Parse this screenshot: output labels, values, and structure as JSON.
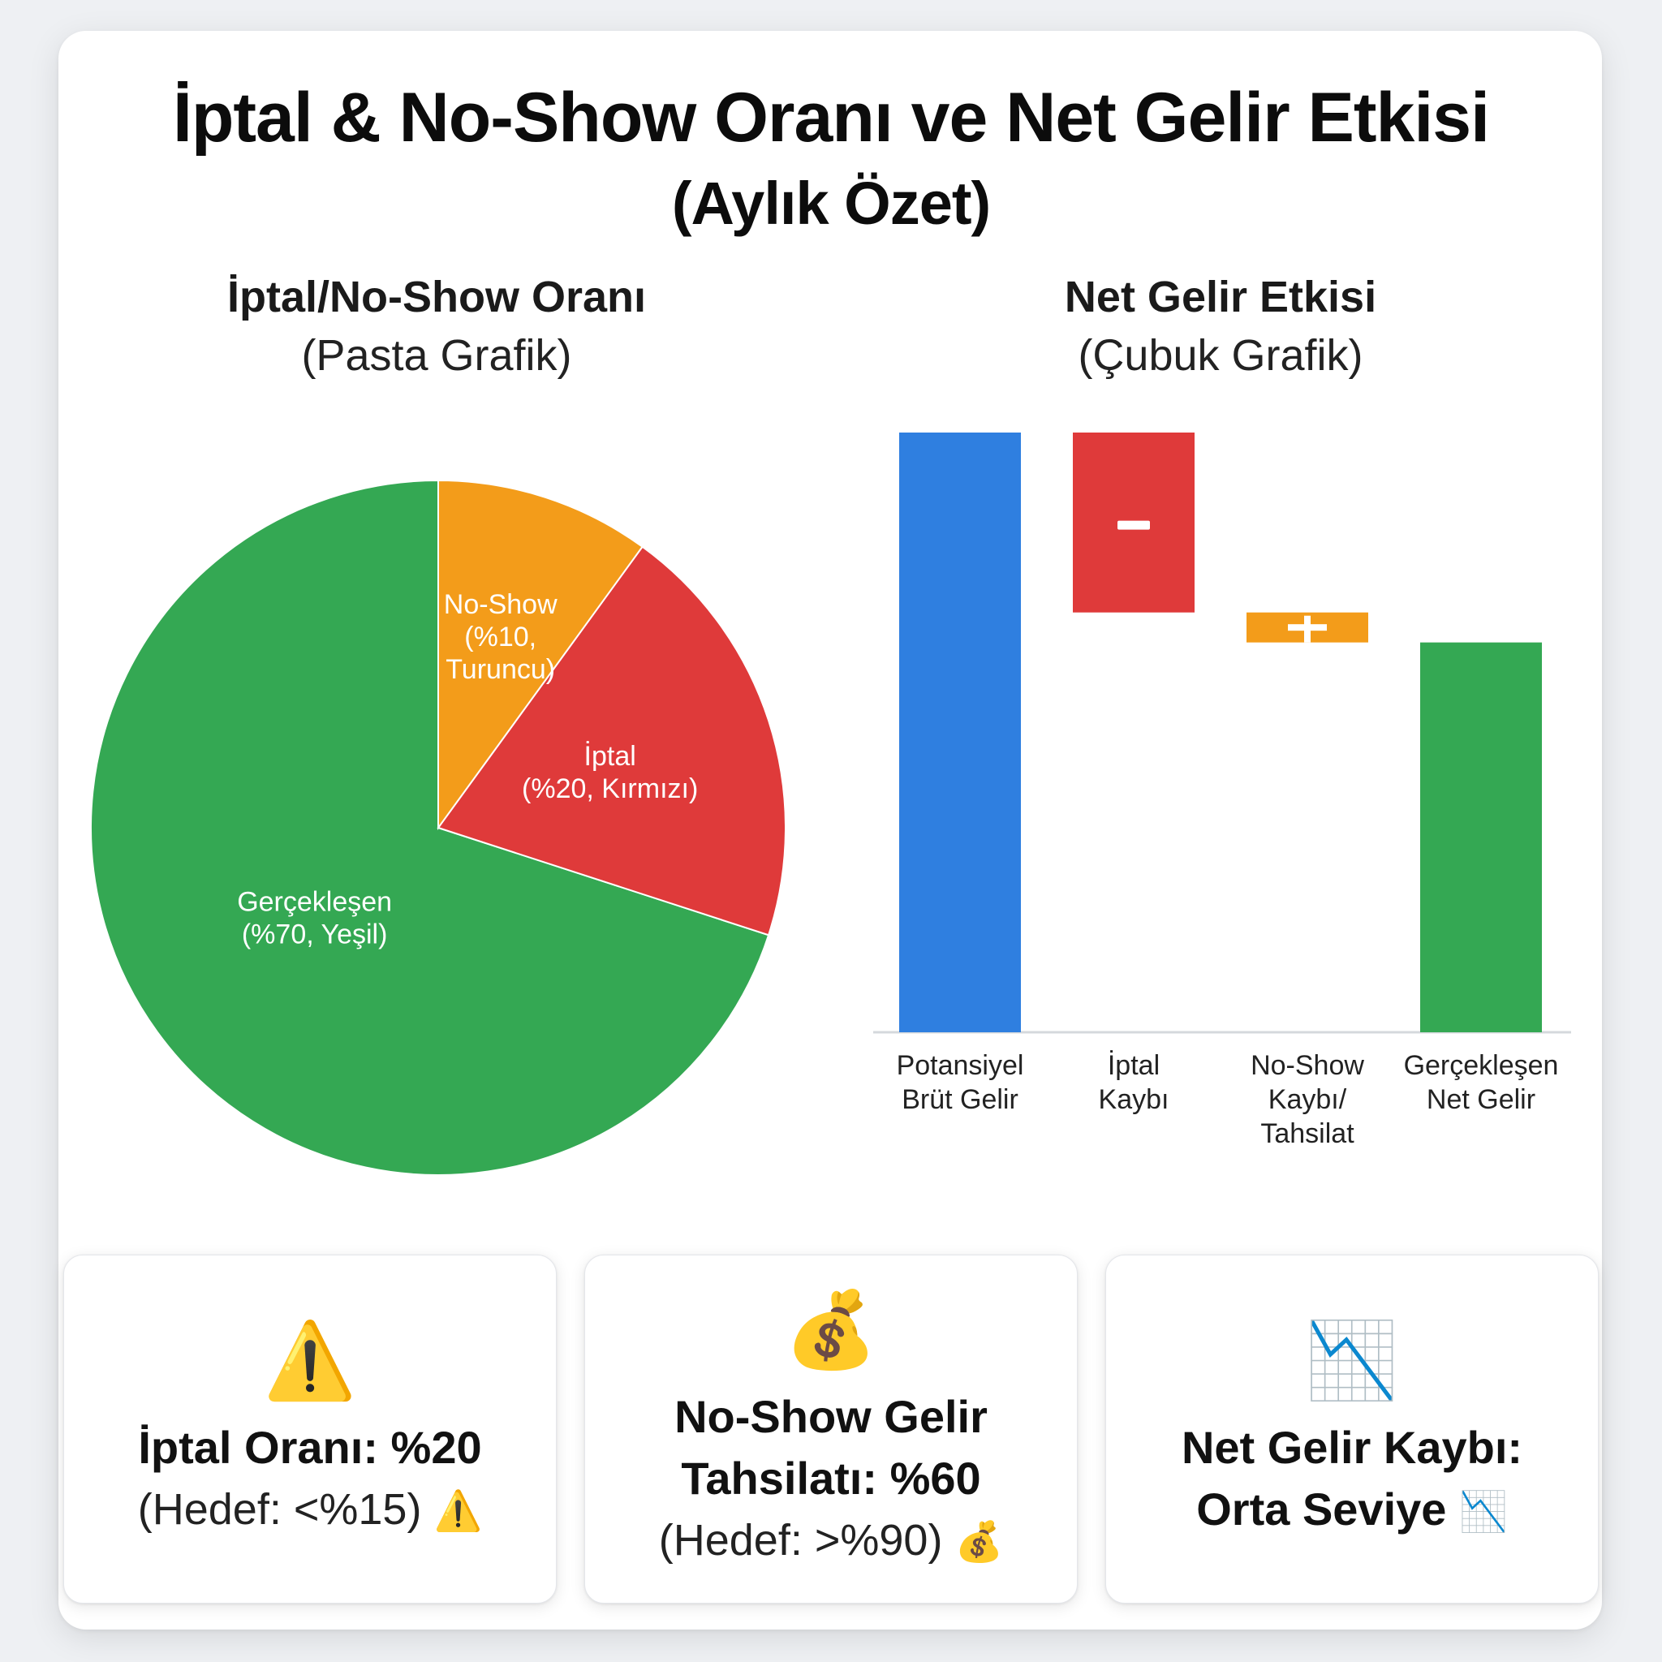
{
  "title": "İptal & No-Show Oranı ve Net Gelir Etkisi",
  "subtitle": "(Aylık Özet)",
  "pie_section": {
    "title": "İptal/No-Show Oranı",
    "subtitle": "(Pasta Grafik)"
  },
  "bar_section": {
    "title": "Net Gelir Etkisi",
    "subtitle": "(Çubuk Grafik)"
  },
  "chart_data": [
    {
      "type": "pie",
      "slices": [
        {
          "label": [
            "Gerçekleşen",
            "(%70, Yeşil)"
          ],
          "value": 70,
          "color": "#34a853"
        },
        {
          "label": [
            "İptal",
            "(%20, Kırmızı)"
          ],
          "value": 20,
          "color": "#df3a3a"
        },
        {
          "label": [
            "No-Show",
            "(%10,",
            "Turuncu)"
          ],
          "value": 10,
          "color": "#f39c1a"
        }
      ],
      "start": "top",
      "direction": "counterclockwise"
    },
    {
      "type": "bar",
      "variant": "waterfall",
      "categories": [
        [
          "Potansiyel",
          "Brüt Gelir"
        ],
        [
          "İptal",
          "Kaybı"
        ],
        [
          "No-Show",
          "Kaybı/",
          "Tahsilat"
        ],
        [
          "Gerçekleşen",
          "Net Gelir"
        ]
      ],
      "bars": [
        {
          "from": 0,
          "to": 100,
          "color": "#2f7fe0",
          "sign": ""
        },
        {
          "from": 70,
          "to": 100,
          "color": "#df3a3a",
          "sign": "−"
        },
        {
          "from": 65,
          "to": 70,
          "color": "#f39c1a",
          "sign": "+"
        },
        {
          "from": 0,
          "to": 65,
          "color": "#34a853",
          "sign": ""
        }
      ],
      "ylim": [
        0,
        100
      ]
    }
  ],
  "kpis": [
    {
      "icon": "⚠️",
      "icon_name": "warning-icon",
      "bold": [
        "İptal Oranı: %20"
      ],
      "normal": "(Hedef: <%15)",
      "tail_icon": "⚠️"
    },
    {
      "icon": "💰",
      "icon_name": "money-bag-icon",
      "bold": [
        "No-Show Gelir",
        "Tahsilatı: %60"
      ],
      "normal": "(Hedef: >%90)",
      "tail_icon": "💰"
    },
    {
      "icon": "📉",
      "icon_name": "chart-decreasing-icon",
      "bold": [
        "Net Gelir Kaybı:",
        "Orta Seviye"
      ],
      "normal": "",
      "tail_icon": "📉"
    }
  ]
}
